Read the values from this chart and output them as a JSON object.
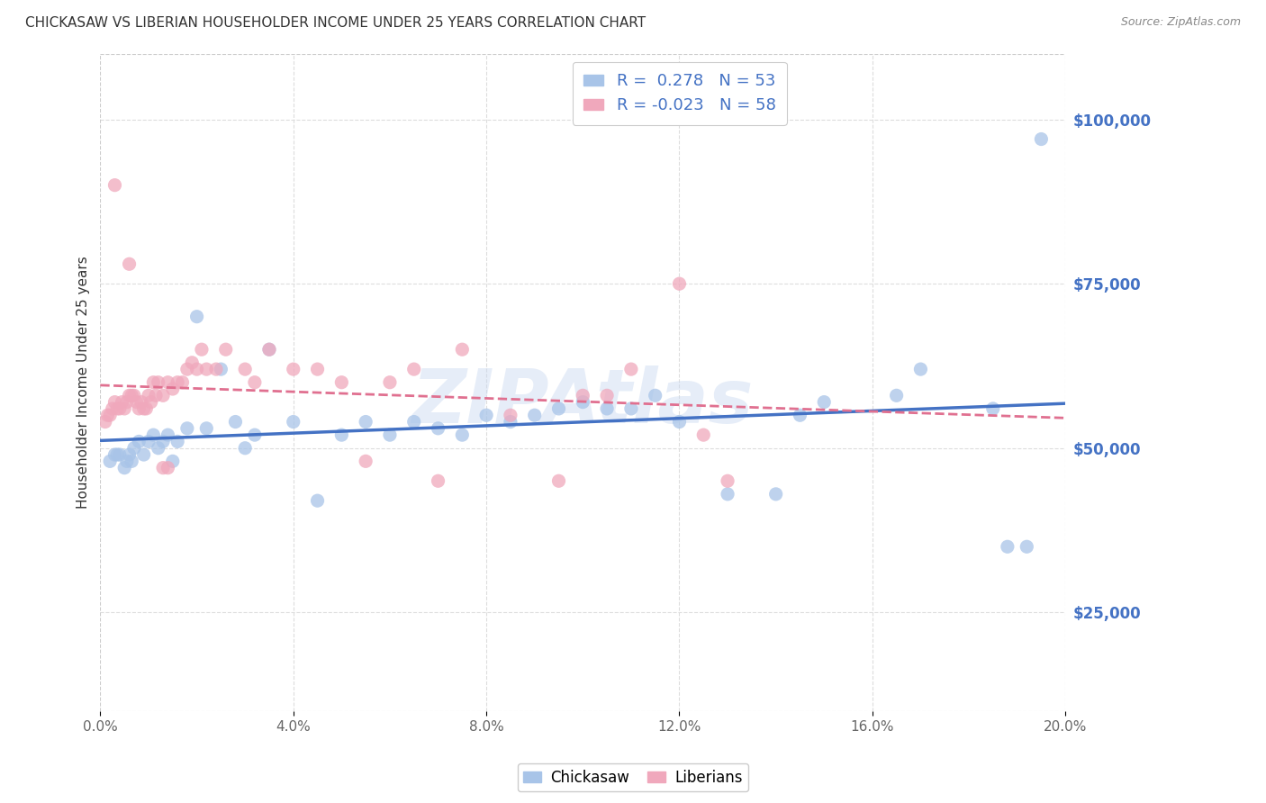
{
  "title": "CHICKASAW VS LIBERIAN HOUSEHOLDER INCOME UNDER 25 YEARS CORRELATION CHART",
  "source": "Source: ZipAtlas.com",
  "ylabel": "Householder Income Under 25 years",
  "xlabel_ticks": [
    "0.0%",
    "4.0%",
    "8.0%",
    "12.0%",
    "16.0%",
    "20.0%"
  ],
  "xlabel_vals": [
    0.0,
    4.0,
    8.0,
    12.0,
    16.0,
    20.0
  ],
  "ylabel_ticks": [
    "$25,000",
    "$50,000",
    "$75,000",
    "$100,000"
  ],
  "ylabel_vals": [
    25000,
    50000,
    75000,
    100000
  ],
  "xlim": [
    0.0,
    20.0
  ],
  "ylim": [
    10000,
    110000
  ],
  "chickasaw_color": "#a8c4e8",
  "liberian_color": "#f0a8bc",
  "chickasaw_R": 0.278,
  "chickasaw_N": 53,
  "liberian_R": -0.023,
  "liberian_N": 58,
  "legend_color": "#4472c4",
  "trendline_chickasaw_color": "#4472c4",
  "trendline_liberian_color": "#e07090",
  "trendline_liberian_dash": "dashed",
  "watermark": "ZIPAtlas",
  "background_color": "#ffffff",
  "grid_color": "#dddddd",
  "chickasaw_x": [
    0.2,
    0.3,
    0.4,
    0.5,
    0.6,
    0.7,
    0.8,
    0.9,
    1.0,
    1.1,
    1.2,
    1.3,
    1.4,
    1.5,
    1.6,
    1.8,
    2.0,
    2.2,
    2.5,
    2.8,
    3.0,
    3.2,
    3.5,
    4.0,
    4.5,
    5.0,
    5.5,
    6.0,
    6.5,
    7.0,
    7.5,
    8.0,
    8.5,
    9.0,
    9.5,
    10.0,
    10.5,
    11.0,
    11.5,
    12.0,
    13.0,
    14.0,
    14.5,
    15.0,
    16.5,
    17.0,
    18.5,
    18.8,
    19.2,
    0.35,
    0.55,
    0.65,
    19.5
  ],
  "chickasaw_y": [
    48000,
    49000,
    49000,
    47000,
    49000,
    50000,
    51000,
    49000,
    51000,
    52000,
    50000,
    51000,
    52000,
    48000,
    51000,
    53000,
    70000,
    53000,
    62000,
    54000,
    50000,
    52000,
    65000,
    54000,
    42000,
    52000,
    54000,
    52000,
    54000,
    53000,
    52000,
    55000,
    54000,
    55000,
    56000,
    57000,
    56000,
    56000,
    58000,
    54000,
    43000,
    43000,
    55000,
    57000,
    58000,
    62000,
    56000,
    35000,
    35000,
    49000,
    48000,
    48000,
    97000
  ],
  "liberian_x": [
    0.1,
    0.15,
    0.2,
    0.25,
    0.3,
    0.35,
    0.4,
    0.45,
    0.5,
    0.55,
    0.6,
    0.65,
    0.7,
    0.75,
    0.8,
    0.85,
    0.9,
    0.95,
    1.0,
    1.05,
    1.1,
    1.15,
    1.2,
    1.3,
    1.4,
    1.5,
    1.6,
    1.7,
    1.8,
    1.9,
    2.0,
    2.1,
    2.2,
    2.4,
    2.6,
    3.0,
    3.2,
    3.5,
    4.0,
    4.5,
    5.0,
    5.5,
    6.0,
    6.5,
    7.0,
    7.5,
    8.5,
    9.5,
    10.0,
    10.5,
    11.0,
    12.5,
    13.0,
    0.3,
    0.6,
    1.3,
    1.4,
    12.0
  ],
  "liberian_y": [
    54000,
    55000,
    55000,
    56000,
    57000,
    56000,
    56000,
    57000,
    56000,
    57000,
    58000,
    58000,
    58000,
    57000,
    56000,
    57000,
    56000,
    56000,
    58000,
    57000,
    60000,
    58000,
    60000,
    58000,
    60000,
    59000,
    60000,
    60000,
    62000,
    63000,
    62000,
    65000,
    62000,
    62000,
    65000,
    62000,
    60000,
    65000,
    62000,
    62000,
    60000,
    48000,
    60000,
    62000,
    45000,
    65000,
    55000,
    45000,
    58000,
    58000,
    62000,
    52000,
    45000,
    90000,
    78000,
    47000,
    47000,
    75000
  ]
}
